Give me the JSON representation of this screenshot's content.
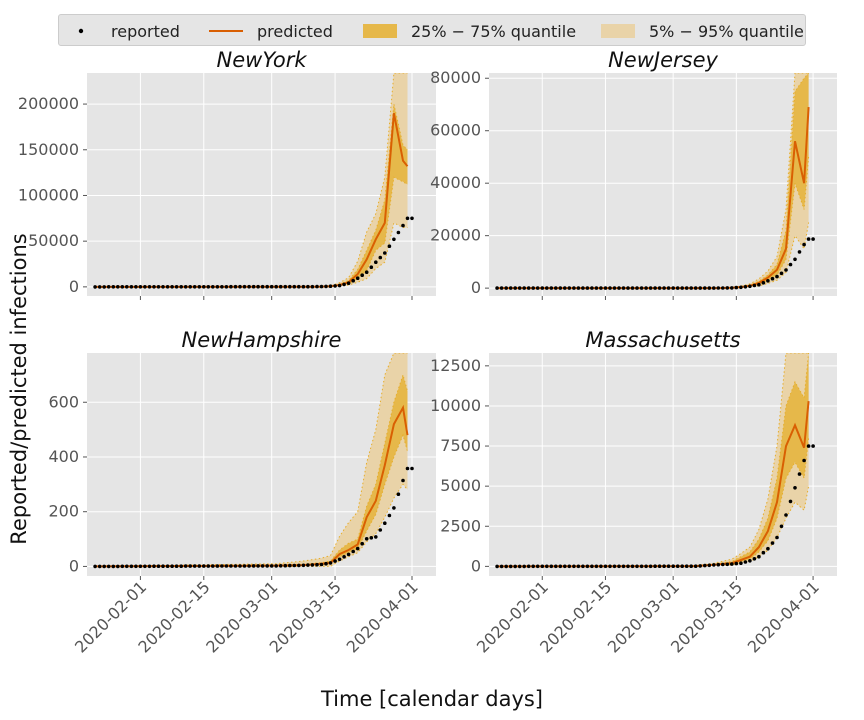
{
  "legend": {
    "reported": "reported",
    "predicted": "predicted",
    "q25": "25% − 75% quantile",
    "q5": "5% − 95% quantile"
  },
  "xlabel": "Time [calendar days]",
  "ylabel": "Reported/predicted infections",
  "colors": {
    "plot_bg": "#e5e5e5",
    "grid": "#ffffff",
    "reported": "#000000",
    "predicted": "#d95f02",
    "band_25_75": "#e6b84a",
    "band_5_95": "#e9d3a8",
    "band_edge": "#e6ad2a"
  },
  "chart_data": [
    {
      "type": "line",
      "title": "NewYork",
      "x": [
        "2020-01-22",
        "2020-03-10",
        "2020-03-12",
        "2020-03-14",
        "2020-03-16",
        "2020-03-18",
        "2020-03-20",
        "2020-03-22",
        "2020-03-24",
        "2020-03-26",
        "2020-03-28",
        "2020-03-30",
        "2020-03-31"
      ],
      "reported": [
        0,
        200,
        300,
        700,
        1400,
        4000,
        9500,
        16000,
        27000,
        37000,
        52000,
        67000,
        75000
      ],
      "predicted": [
        0,
        200,
        300,
        600,
        2000,
        5000,
        14000,
        30000,
        52000,
        70000,
        190000,
        138000,
        132000
      ],
      "q25": [
        0,
        150,
        200,
        400,
        1200,
        3500,
        9000,
        18000,
        40000,
        48000,
        120000,
        115000,
        112000
      ],
      "q75": [
        0,
        250,
        400,
        900,
        3000,
        7000,
        19000,
        40000,
        62000,
        95000,
        200000,
        155000,
        150000
      ],
      "q5": [
        0,
        100,
        150,
        200,
        700,
        2000,
        5000,
        9000,
        20000,
        27000,
        70000,
        65000,
        65000
      ],
      "q95": [
        0,
        350,
        600,
        1300,
        4500,
        10000,
        28000,
        60000,
        80000,
        120000,
        234000,
        234000,
        234000
      ],
      "ylim": [
        -10000,
        234000
      ],
      "yticks": [
        0,
        50000,
        100000,
        150000,
        200000
      ],
      "ytick_labels": [
        "0",
        "50000",
        "100000",
        "150000",
        "200000"
      ],
      "xticks": [
        "2020-02-01",
        "2020-02-15",
        "2020-03-01",
        "2020-03-15",
        "2020-04-01"
      ],
      "xtick_labels": []
    },
    {
      "type": "line",
      "title": "NewJersey",
      "x": [
        "2020-01-22",
        "2020-03-10",
        "2020-03-12",
        "2020-03-14",
        "2020-03-16",
        "2020-03-18",
        "2020-03-20",
        "2020-03-22",
        "2020-03-24",
        "2020-03-26",
        "2020-03-28",
        "2020-03-30",
        "2020-03-31"
      ],
      "reported": [
        0,
        20,
        50,
        100,
        300,
        700,
        1300,
        2800,
        4400,
        6900,
        11000,
        16600,
        18700
      ],
      "predicted": [
        0,
        30,
        60,
        150,
        400,
        900,
        2000,
        4000,
        7000,
        15000,
        56000,
        40000,
        69000
      ],
      "q25": [
        0,
        20,
        40,
        100,
        300,
        700,
        1500,
        3000,
        5000,
        11000,
        40000,
        30000,
        50000
      ],
      "q75": [
        0,
        40,
        80,
        200,
        600,
        1200,
        2600,
        5000,
        9000,
        22000,
        75000,
        80000,
        82000
      ],
      "q5": [
        0,
        10,
        20,
        50,
        200,
        400,
        900,
        1800,
        3000,
        6000,
        20000,
        15000,
        25000
      ],
      "q95": [
        0,
        50,
        100,
        300,
        800,
        1600,
        3500,
        6500,
        12000,
        30000,
        82000,
        82000,
        82000
      ],
      "ylim": [
        -3000,
        82000
      ],
      "yticks": [
        0,
        20000,
        40000,
        60000,
        80000
      ],
      "ytick_labels": [
        "0",
        "20000",
        "40000",
        "60000",
        "80000"
      ],
      "xticks": [
        "2020-02-01",
        "2020-02-15",
        "2020-03-01",
        "2020-03-15",
        "2020-04-01"
      ],
      "xtick_labels": []
    },
    {
      "type": "line",
      "title": "NewHampshire",
      "x": [
        "2020-01-22",
        "2020-03-02",
        "2020-03-08",
        "2020-03-12",
        "2020-03-14",
        "2020-03-16",
        "2020-03-18",
        "2020-03-20",
        "2020-03-22",
        "2020-03-24",
        "2020-03-26",
        "2020-03-28",
        "2020-03-30",
        "2020-03-31"
      ],
      "reported": [
        0,
        2,
        4,
        7,
        13,
        26,
        44,
        65,
        101,
        108,
        158,
        214,
        314,
        358
      ],
      "predicted": [
        0,
        3,
        5,
        10,
        13,
        45,
        60,
        80,
        180,
        240,
        370,
        520,
        580,
        480
      ],
      "q25": [
        0,
        2,
        3,
        7,
        10,
        35,
        50,
        65,
        130,
        190,
        300,
        400,
        480,
        420
      ],
      "q75": [
        0,
        5,
        8,
        14,
        20,
        60,
        85,
        100,
        220,
        300,
        450,
        600,
        700,
        640
      ],
      "q5": [
        0,
        0,
        0,
        0,
        0,
        20,
        35,
        50,
        90,
        120,
        180,
        250,
        300,
        280
      ],
      "q95": [
        0,
        10,
        20,
        30,
        40,
        110,
        160,
        200,
        380,
        500,
        700,
        780,
        780,
        780
      ],
      "ylim": [
        -35,
        780
      ],
      "yticks": [
        0,
        200,
        400,
        600
      ],
      "ytick_labels": [
        "0",
        "200",
        "400",
        "600"
      ],
      "xticks": [
        "2020-02-01",
        "2020-02-15",
        "2020-03-01",
        "2020-03-15",
        "2020-04-01"
      ],
      "xtick_labels": [
        "2020-02-01",
        "2020-02-15",
        "2020-03-01",
        "2020-03-15",
        "2020-04-01"
      ]
    },
    {
      "type": "line",
      "title": "Massachusetts",
      "x": [
        "2020-01-22",
        "2020-03-06",
        "2020-03-10",
        "2020-03-14",
        "2020-03-16",
        "2020-03-18",
        "2020-03-20",
        "2020-03-22",
        "2020-03-24",
        "2020-03-26",
        "2020-03-28",
        "2020-03-30",
        "2020-03-31"
      ],
      "reported": [
        0,
        10,
        90,
        140,
        200,
        350,
        600,
        1100,
        1800,
        3200,
        4900,
        6600,
        7500
      ],
      "predicted": [
        0,
        20,
        100,
        200,
        400,
        600,
        1200,
        2200,
        4000,
        7500,
        8800,
        7400,
        10300
      ],
      "q25": [
        0,
        15,
        80,
        150,
        300,
        450,
        900,
        1600,
        3000,
        5500,
        6500,
        5500,
        8000
      ],
      "q75": [
        0,
        30,
        140,
        300,
        600,
        900,
        1700,
        3000,
        5500,
        10000,
        11500,
        10500,
        13300
      ],
      "q5": [
        0,
        10,
        50,
        100,
        200,
        300,
        600,
        1000,
        1800,
        3000,
        4000,
        3500,
        5000
      ],
      "q95": [
        0,
        50,
        200,
        450,
        800,
        1200,
        2300,
        4200,
        7500,
        13300,
        13300,
        13300,
        13300
      ],
      "ylim": [
        -600,
        13300
      ],
      "yticks": [
        0,
        2500,
        5000,
        7500,
        10000,
        12500
      ],
      "ytick_labels": [
        "0",
        "2500",
        "5000",
        "7500",
        "10000",
        "12500"
      ],
      "xticks": [
        "2020-02-01",
        "2020-02-15",
        "2020-03-01",
        "2020-03-15",
        "2020-04-01"
      ],
      "xtick_labels": [
        "2020-02-01",
        "2020-02-15",
        "2020-03-01",
        "2020-03-15",
        "2020-04-01"
      ]
    }
  ]
}
